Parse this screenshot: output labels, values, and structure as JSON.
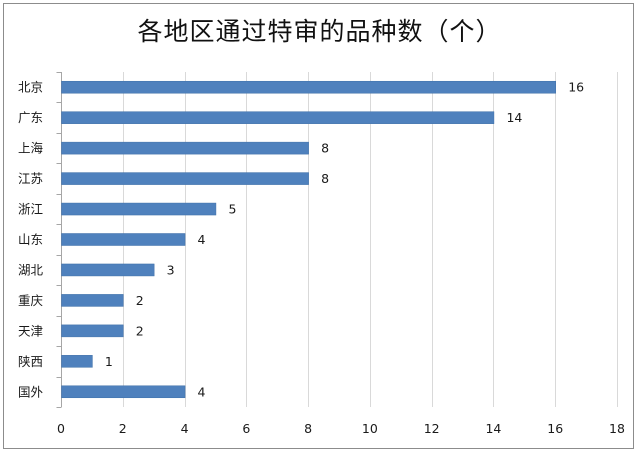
{
  "chart_data": {
    "type": "bar",
    "orientation": "horizontal",
    "title": "各地区通过特审的品种数（个）",
    "categories": [
      "北京",
      "广东",
      "上海",
      "江苏",
      "浙江",
      "山东",
      "湖北",
      "重庆",
      "天津",
      "陕西",
      "国外"
    ],
    "values": [
      16,
      14,
      8,
      8,
      5,
      4,
      3,
      2,
      2,
      1,
      4
    ],
    "xlim": [
      0,
      18
    ],
    "xticks": [
      0,
      2,
      4,
      6,
      8,
      10,
      12,
      14,
      16,
      18
    ],
    "xlabel": "",
    "ylabel": "",
    "grid": "vertical",
    "legend": "none",
    "data_labels": true,
    "colors": {
      "bar": "#4f81bd",
      "bar_edge": "#3e6fa8",
      "grid": "#d9d9d9",
      "axis": "#a6a6a6",
      "border": "#8c8c8c"
    }
  }
}
